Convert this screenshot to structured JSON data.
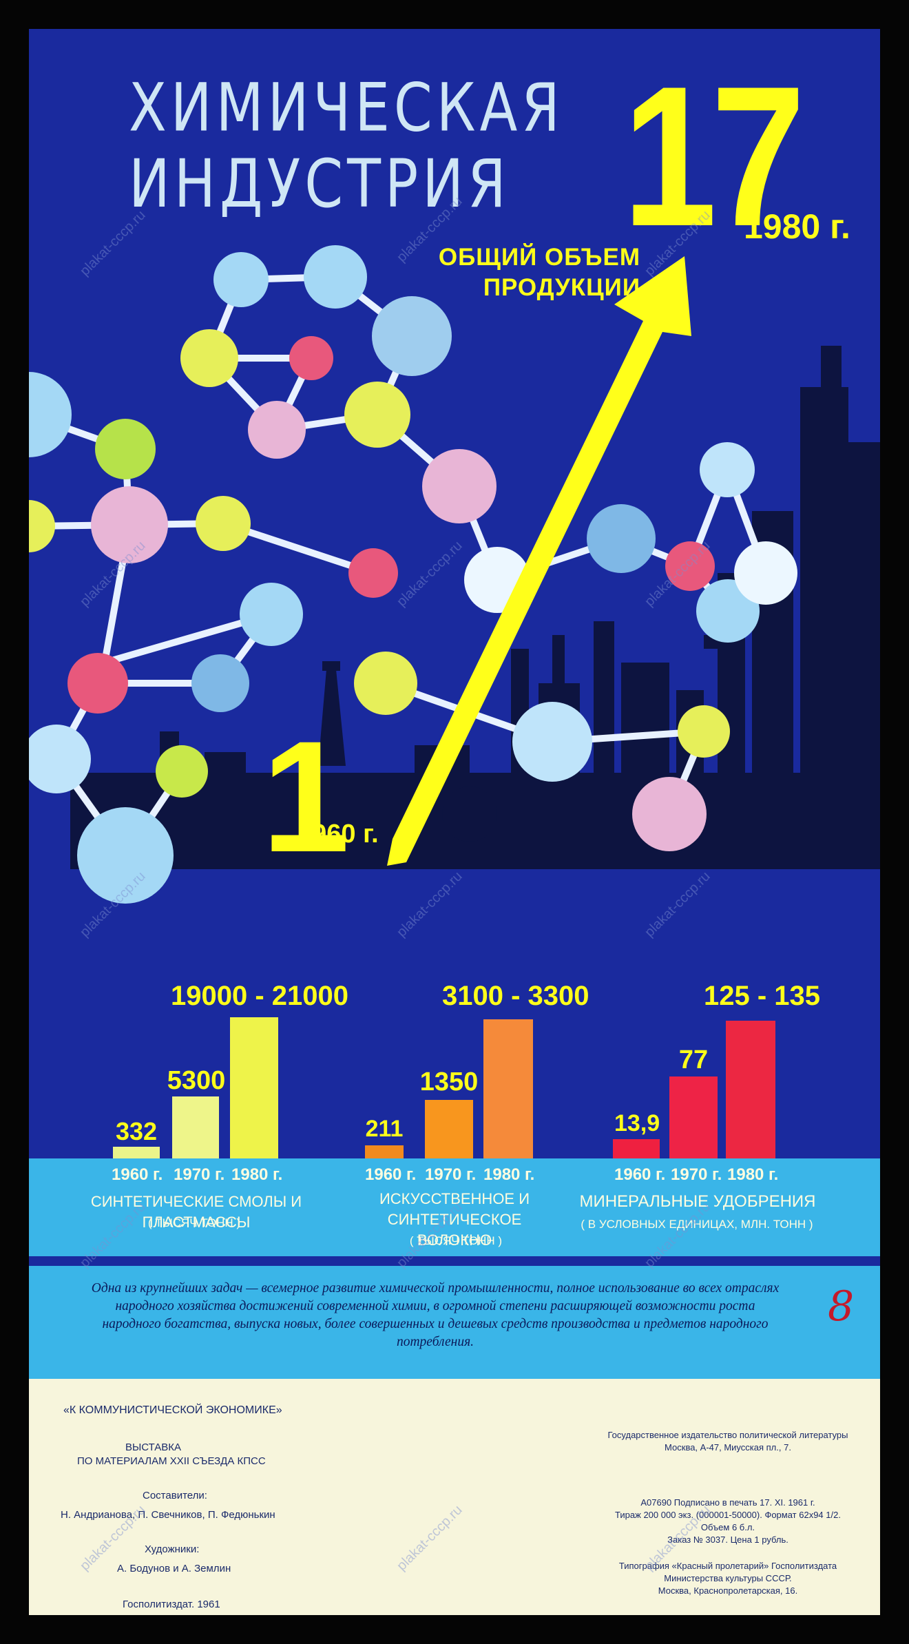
{
  "title": {
    "line1": "ХИМИЧЕСКАЯ",
    "line2": "ИНДУСТРИЯ"
  },
  "headline": {
    "label_line1": "ОБЩИЙ ОБЪЕМ",
    "label_line2": "ПРОДУКЦИИ",
    "value_1960": "1",
    "year_1960": "1960 г.",
    "value_1980": "17",
    "year_1980": "1980 г."
  },
  "charts": [
    {
      "category": "СИНТЕТИЧЕСКИЕ СМОЛЫ И ПЛАСТМАССЫ",
      "unit": "( ТЫСЯЧ ТОНН )",
      "years": [
        "1960 г.",
        "1970 г.",
        "1980 г."
      ],
      "labels": [
        "332",
        "5300",
        "19000 - 21000"
      ],
      "values": [
        332,
        5300,
        20000
      ]
    },
    {
      "category": "ИСКУССТВЕННОЕ И СИНТЕТИЧЕСКОЕ ВОЛОКНО",
      "unit": "( ТЫСЯЧ ТОНН )",
      "years": [
        "1960 г.",
        "1970 г.",
        "1980 г."
      ],
      "labels": [
        "211",
        "1350",
        "3100 - 3300"
      ],
      "values": [
        211,
        1350,
        3200
      ]
    },
    {
      "category": "МИНЕРАЛЬНЫЕ УДОБРЕНИЯ",
      "unit": "( В УСЛОВНЫХ ЕДИНИЦАХ, МЛН. ТОНН )",
      "years": [
        "1960 г.",
        "1970 г.",
        "1980 г."
      ],
      "labels": [
        "13,9",
        "77",
        "125 - 135"
      ],
      "values": [
        13.9,
        77,
        130
      ]
    }
  ],
  "description": "Одна из крупнейших задач — всемерное развитие химической промышленности, полное использование во всех отраслях народного хозяйства достижений современной химии, в огромной степени расширяющей возможности роста народного богатства, выпуска новых, более совершенных и дешевых средств производства и предметов народного потребления.",
  "handwritten_number": "8",
  "footer": {
    "series": "«К КОММУНИСТИЧЕСКОЙ ЭКОНОМИКЕ»",
    "exhibition_line1": "ВЫСТАВКА",
    "exhibition_line2": "ПО МАТЕРИАЛАМ XXII СЪЕЗДА КПСС",
    "compilers_label": "Составители:",
    "compilers": "Н. Андрианова, П. Свечников, П. Федюнькин",
    "artists_label": "Художники:",
    "artists": "А. Бодунов и А. Землин",
    "publisher_year": "Госполитиздат. 1961",
    "publisher_line1": "Государственное издательство политической литературы",
    "publisher_line2": "Москва, А-47, Миусская пл., 7.",
    "print_line1": "А07690 Подписано в печать 17. XI. 1961 г.",
    "print_line2": "Тираж 200 000 экз. (000001-50000). Формат 62х94 1/2.",
    "print_line3": "Объем 6 б.л.",
    "print_line4": "Заказ № 3037. Цена 1 рубль.",
    "printer_line1": "Типография «Красный пролетарий» Госполитиздата",
    "printer_line2": "Министерства культуры СССР.",
    "printer_line3": "Москва, Краснопролетарская, 16."
  },
  "watermark": "plakat-cccp.ru",
  "colors": {
    "background": "#1a2a9e",
    "accent": "#ffff1a",
    "band": "#3ab5e8",
    "footer": "#f7f5dc"
  }
}
